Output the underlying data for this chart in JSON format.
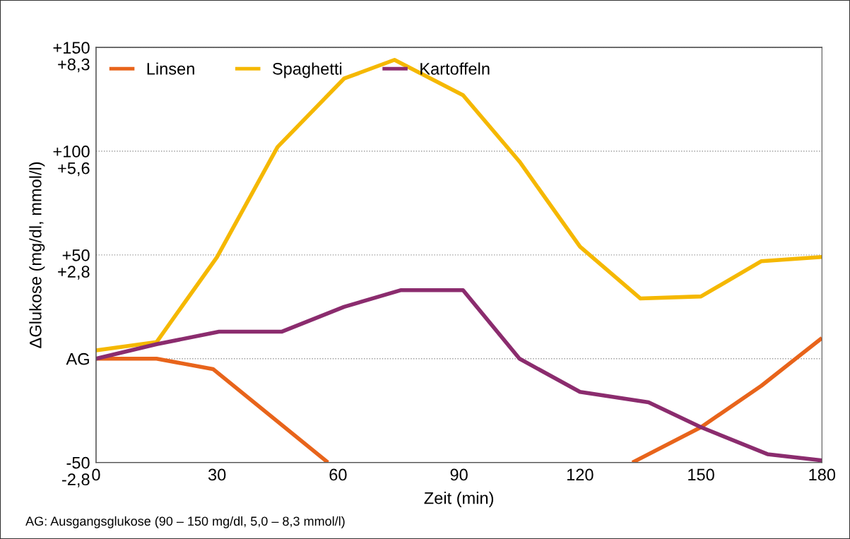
{
  "chart_data": {
    "type": "line",
    "xlabel": "Zeit (min)",
    "ylabel": "ΔGlukose (mg/dl, mmol/l)",
    "xlim": [
      0,
      180
    ],
    "xticks": [
      0,
      30,
      60,
      90,
      120,
      150,
      180
    ],
    "ylim": [
      -50,
      150
    ],
    "yticks": [
      {
        "value": -50,
        "label": "-50"
      },
      {
        "value": 0,
        "label": "AG"
      },
      {
        "value": 50,
        "label": "+50"
      },
      {
        "value": 100,
        "label": "+100"
      },
      {
        "value": 150,
        "label": "+150"
      }
    ],
    "y2lim": [
      -2.78,
      8.33
    ],
    "y2ticks": [
      {
        "value": -2.78,
        "label": "-2,8"
      },
      {
        "value": 2.78,
        "label": "+2,8"
      },
      {
        "value": 5.55,
        "label": "+5,6"
      },
      {
        "value": 8.33,
        "label": "+8,3"
      }
    ],
    "grid": "y",
    "legend": "top left",
    "line_style": "solid",
    "marker": "none",
    "series": [
      {
        "name": "Linsen",
        "color": "#e8641b",
        "x": [
          0,
          15,
          29,
          57.5,
          null,
          133,
          150,
          165,
          180
        ],
        "values": [
          0,
          0,
          -5,
          -50,
          null,
          -50,
          -33,
          -13,
          10
        ]
      },
      {
        "name": "Spaghetti",
        "color": "#f5b800",
        "x": [
          0,
          15,
          30,
          45,
          61.5,
          74,
          91,
          105,
          120,
          135,
          150,
          165,
          180
        ],
        "values": [
          4,
          8,
          49,
          102,
          135,
          144,
          127,
          95,
          54,
          29,
          30,
          47,
          49
        ]
      },
      {
        "name": "Kartoffeln",
        "color": "#8b2c6e",
        "x": [
          0,
          15,
          30.5,
          46,
          61.5,
          75.5,
          91,
          105,
          120,
          137,
          150,
          166.5,
          180
        ],
        "values": [
          0,
          7,
          13,
          13,
          25,
          33,
          33,
          0,
          -16,
          -21,
          -33,
          -46,
          -49
        ]
      }
    ],
    "annotations": [
      "AG: Ausgangsglukose (90 – 150 mg/dl, 5,0 – 8,3 mmol/l)"
    ]
  }
}
